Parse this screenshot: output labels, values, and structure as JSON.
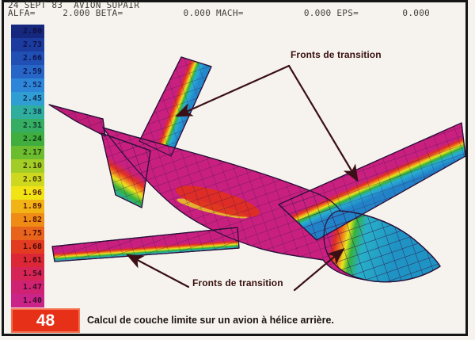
{
  "header": {
    "line1": "24 SEPT 83  AVION SUPAIR",
    "line2": "ALFA=     2.000 BETA=           0.000 MACH=           0.000 EPS=        0.000"
  },
  "colorbar": {
    "bands": [
      {
        "value": "2.80",
        "color": "#16277e",
        "label_color": "#101040"
      },
      {
        "value": "2.73",
        "color": "#1b3c9e",
        "label_color": "#101048"
      },
      {
        "value": "2.66",
        "color": "#2050b4",
        "label_color": "#0e1450"
      },
      {
        "value": "2.59",
        "color": "#2766c6",
        "label_color": "#0e1a55"
      },
      {
        "value": "2.52",
        "color": "#2e86d8",
        "label_color": "#122a60"
      },
      {
        "value": "2.45",
        "color": "#2f9ed2",
        "label_color": "#123055"
      },
      {
        "value": "2.38",
        "color": "#2fae9e",
        "label_color": "#123a50"
      },
      {
        "value": "2.31",
        "color": "#35ae64",
        "label_color": "#123c2a"
      },
      {
        "value": "2.24",
        "color": "#3fae3f",
        "label_color": "#133813"
      },
      {
        "value": "2.17",
        "color": "#6cbc30",
        "label_color": "#283c0e"
      },
      {
        "value": "2.10",
        "color": "#a2cc26",
        "label_color": "#3a3c0c"
      },
      {
        "value": "2.03",
        "color": "#cdd81e",
        "label_color": "#48420c"
      },
      {
        "value": "1.96",
        "color": "#f0e414",
        "label_color": "#5c2410"
      },
      {
        "value": "1.89",
        "color": "#f2b414",
        "label_color": "#5c1c0e"
      },
      {
        "value": "1.82",
        "color": "#ee8c16",
        "label_color": "#581408"
      },
      {
        "value": "1.75",
        "color": "#e8641c",
        "label_color": "#500e08"
      },
      {
        "value": "1.68",
        "color": "#e23c20",
        "label_color": "#460a0a"
      },
      {
        "value": "1.61",
        "color": "#dc2836",
        "label_color": "#420a12"
      },
      {
        "value": "1.54",
        "color": "#d62456",
        "label_color": "#3c0e1c"
      },
      {
        "value": "1.47",
        "color": "#d02272",
        "label_color": "#3a0e24"
      },
      {
        "value": "1.40",
        "color": "#ca2488",
        "label_color": "#380e2a"
      }
    ]
  },
  "annotations": {
    "top": "Fronts de transition",
    "bottom": "Fronts de transition"
  },
  "caption": {
    "figure_number": "48",
    "text": "Calcul de couche limite sur un avion à hélice arrière."
  },
  "colors": {
    "body_magenta": "#c9207f",
    "transition_red": "#e03020",
    "transition_orange": "#f08020",
    "transition_yellow": "#ece41c",
    "transition_green": "#34b23c",
    "laminar_cyan": "#28aed4",
    "mesh_line": "#33124a",
    "annotation_dark": "#3a1016",
    "badge_red": "#e63018"
  }
}
